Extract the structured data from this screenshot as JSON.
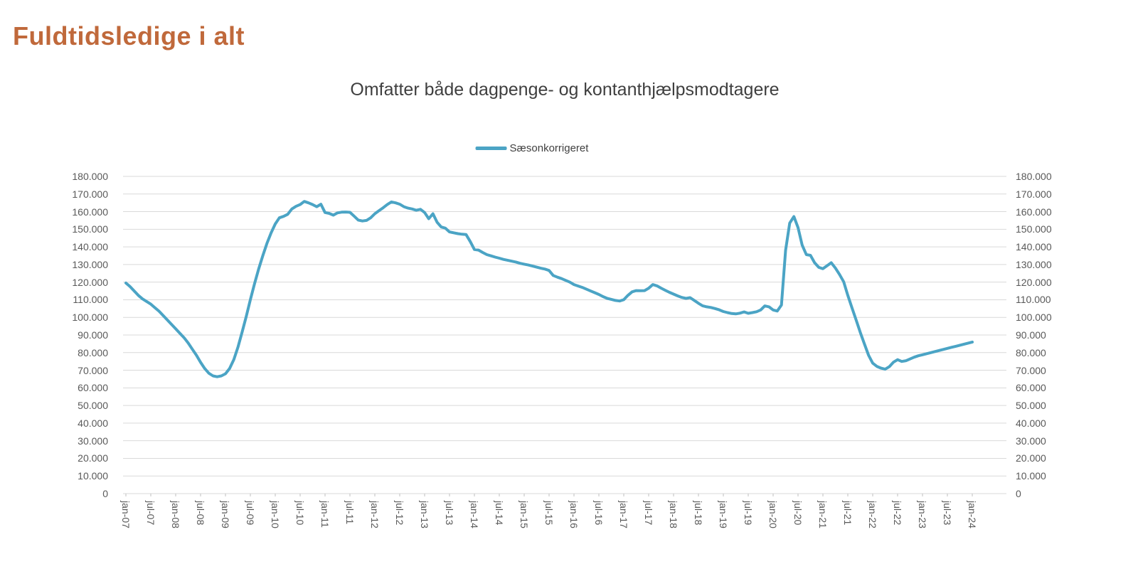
{
  "header": {
    "title": "Fuldtidsledige i alt",
    "title_color": "#C0693B"
  },
  "chart": {
    "subtitle": "Omfatter både dagpenge- og kontanthjælpsmodtagere",
    "legend_label": "Sæsonkorrigeret"
  },
  "colors": {
    "background": "#FFFFFF",
    "line": "#4BA4C5",
    "grid": "#D9D9D9",
    "axis": "#BFBFBF",
    "tick_text": "#595959",
    "subtitle_text": "#3F3F3F",
    "legend_text": "#404040"
  },
  "chart_data": {
    "type": "line",
    "title": "Omfatter både dagpenge- og kontanthjælpsmodtagere",
    "xlabel": "",
    "ylabel": "",
    "ylim": [
      0,
      180000
    ],
    "y_step": 10000,
    "grid": "horizontal",
    "legend_position": "top-center",
    "axes": {
      "y_left": true,
      "y_right": true
    },
    "y_tick_labels": [
      "0",
      "10.000",
      "20.000",
      "30.000",
      "40.000",
      "50.000",
      "60.000",
      "70.000",
      "80.000",
      "90.000",
      "100.000",
      "110.000",
      "120.000",
      "130.000",
      "140.000",
      "150.000",
      "160.000",
      "170.000",
      "180.000"
    ],
    "x_tick_labels": [
      "jan-07",
      "jul-07",
      "jan-08",
      "jul-08",
      "jan-09",
      "jul-09",
      "jan-10",
      "jul-10",
      "jan-11",
      "jul-11",
      "jan-12",
      "jul-12",
      "jan-13",
      "jul-13",
      "jan-14",
      "jul-14",
      "jan-15",
      "jul-15",
      "jan-16",
      "jul-16",
      "jan-17",
      "jul-17",
      "jan-18",
      "jul-18",
      "jan-19",
      "jul-19",
      "jan-20",
      "jul-20",
      "jan-21",
      "jul-21",
      "jan-22",
      "jul-22",
      "jan-23",
      "jul-23",
      "jan-24"
    ],
    "series": [
      {
        "name": "Sæsonkorrigeret",
        "color": "#4BA4C5",
        "x_start": "jan-07",
        "x_end": "jan-24",
        "frequency": "monthly",
        "values": [
          119500,
          117500,
          115000,
          112500,
          110500,
          109000,
          107500,
          105500,
          103500,
          101000,
          98500,
          96000,
          93500,
          91000,
          88500,
          85500,
          82000,
          78500,
          74500,
          71000,
          68300,
          66800,
          66300,
          66800,
          68000,
          71000,
          76000,
          83000,
          91500,
          100500,
          110000,
          119000,
          127500,
          135000,
          142000,
          148000,
          153000,
          156500,
          157300,
          158500,
          161500,
          163000,
          164000,
          165800,
          165000,
          164000,
          162800,
          164200,
          159500,
          159000,
          158000,
          159300,
          159700,
          159800,
          159600,
          157500,
          155200,
          154700,
          155000,
          156500,
          158800,
          160500,
          162200,
          164000,
          165500,
          165000,
          164200,
          162800,
          162000,
          161500,
          160800,
          161300,
          159500,
          156000,
          158800,
          154000,
          151300,
          150600,
          148500,
          148000,
          147500,
          147200,
          147000,
          143000,
          138500,
          138200,
          136800,
          135600,
          134900,
          134200,
          133600,
          132900,
          132400,
          131900,
          131400,
          130700,
          130200,
          129700,
          129100,
          128500,
          127900,
          127400,
          126600,
          123800,
          122800,
          122000,
          121000,
          120000,
          118600,
          117800,
          117000,
          116000,
          115000,
          114000,
          113000,
          111800,
          110800,
          110200,
          109600,
          109300,
          110000,
          112500,
          114500,
          115200,
          115100,
          115200,
          116500,
          118600,
          117900,
          116600,
          115400,
          114200,
          113200,
          112200,
          111300,
          110800,
          111200,
          109600,
          108000,
          106600,
          106000,
          105600,
          105000,
          104300,
          103300,
          102700,
          102200,
          102000,
          102400,
          103100,
          102300,
          102700,
          103200,
          104200,
          106500,
          106000,
          104200,
          103600,
          107000,
          138000,
          153500,
          157200,
          151000,
          141000,
          135600,
          135200,
          131000,
          128400,
          127600,
          129300,
          131000,
          128000,
          124400,
          120200,
          112500,
          105500,
          98500,
          91500,
          85000,
          78500,
          74000,
          72200,
          71200,
          70600,
          72000,
          74600,
          76000,
          75000,
          75400,
          76400,
          77400,
          78200,
          78800,
          79400,
          80000,
          80600,
          81200,
          81800,
          82400,
          83000,
          83600,
          84200,
          84800,
          85400,
          86000
        ]
      }
    ]
  }
}
